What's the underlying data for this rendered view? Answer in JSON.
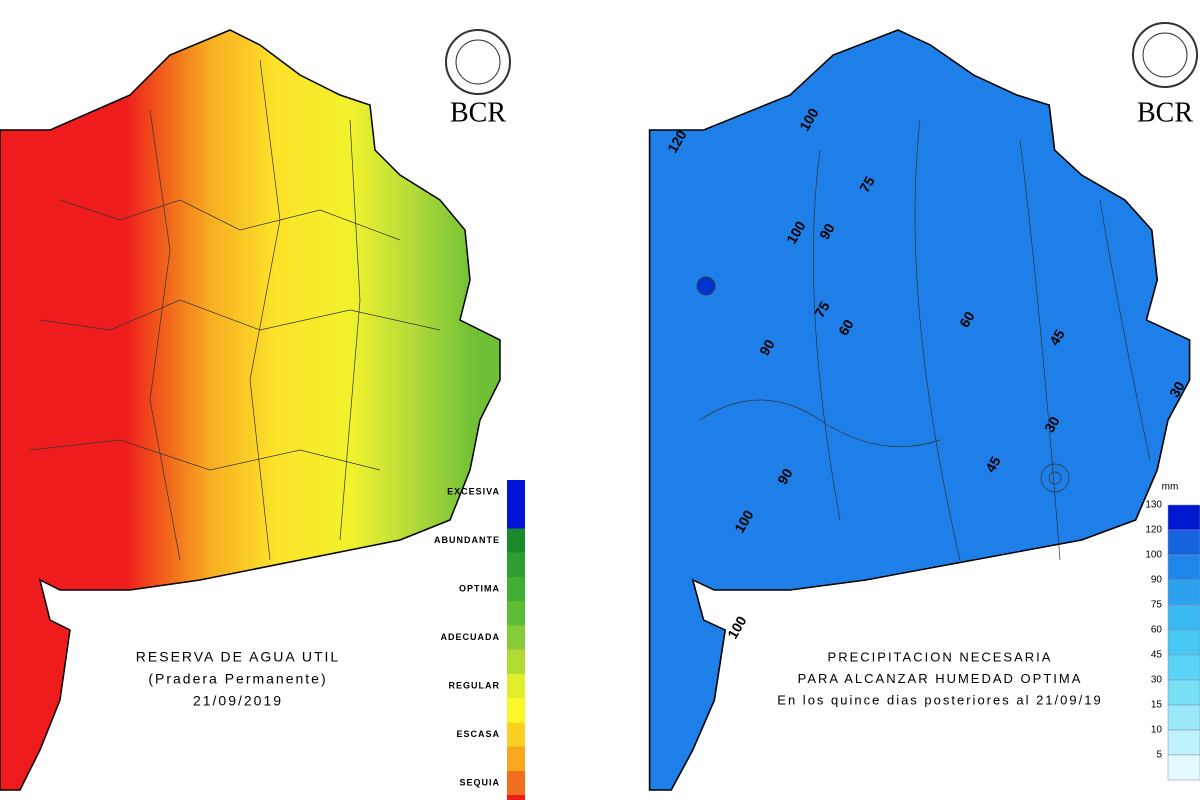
{
  "left_map": {
    "logo": "BCR",
    "title": [
      "RESERVA DE AGUA UTIL",
      "(Pradera Permanente)",
      "21/09/2019"
    ],
    "legend": [
      "EXCESIVA",
      "ABUNDANTE",
      "OPTIMA",
      "ADECUADA",
      "REGULAR",
      "ESCASA",
      "SEQUIA"
    ]
  },
  "right_map": {
    "logo": "BCR",
    "title": [
      "PRECIPITACION NECESARIA",
      "PARA ALCANZAR HUMEDAD OPTIMA",
      "En los quince dias posteriores al 21/09/19"
    ],
    "legend_unit": "mm",
    "legend": [
      130,
      120,
      100,
      90,
      75,
      60,
      45,
      30,
      15,
      10,
      5
    ],
    "contour_labels": [
      120,
      100,
      90,
      75,
      60,
      45,
      30,
      100,
      90,
      75,
      60,
      45,
      30,
      90,
      100,
      100
    ]
  }
}
